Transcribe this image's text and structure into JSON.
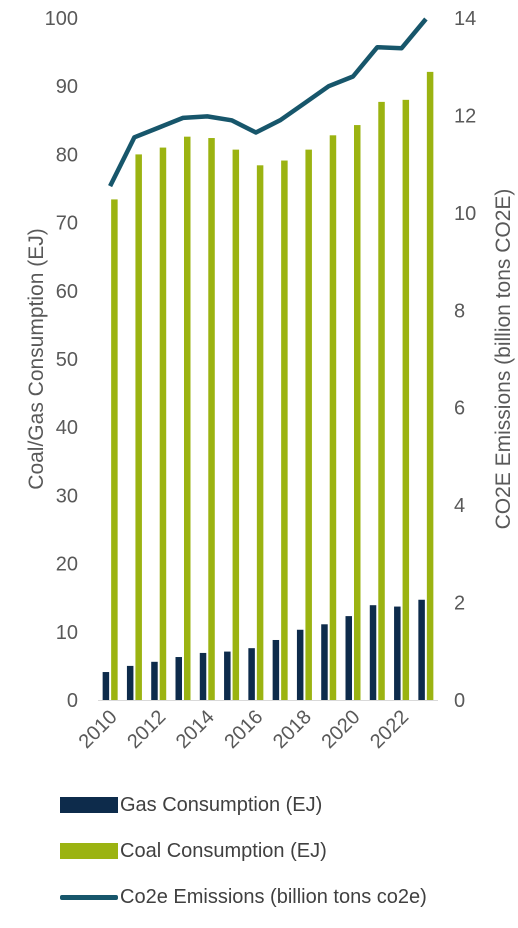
{
  "chart_data": {
    "type": "bar",
    "categories": [
      "2010",
      "2011",
      "2012",
      "2013",
      "2014",
      "2015",
      "2016",
      "2017",
      "2018",
      "2019",
      "2020",
      "2021",
      "2022",
      "2023"
    ],
    "x_tick_labels": [
      "2010",
      "2012",
      "2014",
      "2016",
      "2018",
      "2020",
      "2022"
    ],
    "series": [
      {
        "name": "Gas Consumption (EJ)",
        "kind": "bar",
        "axis": "left",
        "color": "#0d2b4b",
        "values": [
          4.1,
          5.0,
          5.6,
          6.3,
          6.9,
          7.1,
          7.6,
          8.8,
          10.3,
          11.1,
          12.3,
          13.9,
          13.7,
          14.7
        ]
      },
      {
        "name": "Coal Consumption (EJ)",
        "kind": "bar",
        "axis": "left",
        "color": "#9bb311",
        "values": [
          73.4,
          80.0,
          81.0,
          82.6,
          82.4,
          80.7,
          78.4,
          79.1,
          80.7,
          82.8,
          84.3,
          87.7,
          88.0,
          92.1
        ]
      },
      {
        "name": "Co2e Emissions (billion tons co2e)",
        "kind": "line",
        "axis": "right",
        "color": "#17566b",
        "values": [
          10.55,
          11.55,
          11.75,
          11.95,
          11.98,
          11.9,
          11.65,
          11.9,
          12.25,
          12.6,
          12.8,
          13.4,
          13.38,
          13.98
        ]
      }
    ],
    "y_left": {
      "label": "Coal/Gas Consumption (EJ)",
      "ylim": [
        0,
        100
      ],
      "ticks": [
        "0",
        "10",
        "20",
        "30",
        "40",
        "50",
        "60",
        "70",
        "80",
        "90",
        "100"
      ]
    },
    "y_right": {
      "label": "CO2E Emissions (billion tons CO2E)",
      "ylim": [
        0,
        14
      ],
      "ticks": [
        "0",
        "2",
        "4",
        "6",
        "8",
        "10",
        "12",
        "14"
      ]
    },
    "grid": false,
    "legend_position": "bottom"
  }
}
